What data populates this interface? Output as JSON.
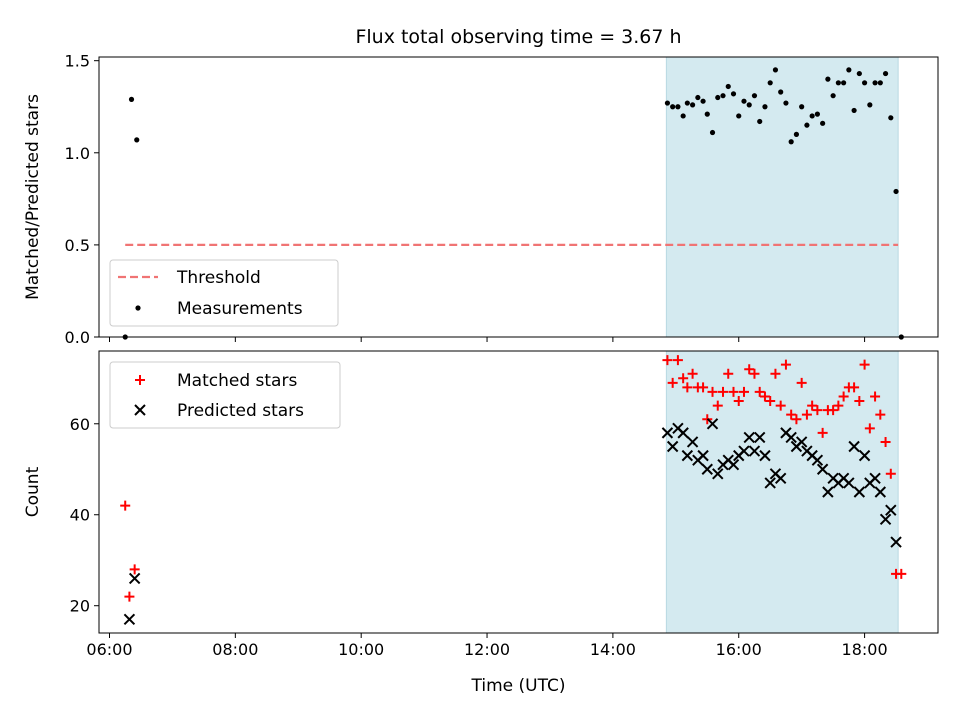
{
  "chart_data": [
    {
      "type": "scatter",
      "title": "Flux total observing time = 3.67 h",
      "xlabel": "",
      "ylabel": "Matched/Predicted stars",
      "xlim": [
        "05:50",
        "19:10"
      ],
      "ylim": [
        0,
        1.52
      ],
      "x_ticks": [
        "06:00",
        "08:00",
        "10:00",
        "12:00",
        "14:00",
        "16:00",
        "18:00"
      ],
      "y_ticks": [
        "0.0",
        "0.5",
        "1.0",
        "1.5"
      ],
      "grid": false,
      "legend_position": "lower-left",
      "shaded_interval": {
        "start": "14:51",
        "end": "18:32",
        "color": "#d4eaf0"
      },
      "threshold": {
        "name": "Threshold",
        "value": 0.5,
        "x_start": "06:15",
        "x_end": "18:32",
        "color": "#f07474",
        "style": "dashed"
      },
      "series": [
        {
          "name": "Measurements",
          "marker": "dot",
          "color": "#000000",
          "points": [
            [
              "06:15",
              0.0
            ],
            [
              "06:21",
              1.29
            ],
            [
              "06:26",
              1.07
            ],
            [
              "14:52",
              1.27
            ],
            [
              "14:57",
              1.25
            ],
            [
              "15:02",
              1.25
            ],
            [
              "15:07",
              1.2
            ],
            [
              "15:11",
              1.27
            ],
            [
              "15:16",
              1.26
            ],
            [
              "15:21",
              1.3
            ],
            [
              "15:26",
              1.28
            ],
            [
              "15:30",
              1.21
            ],
            [
              "15:35",
              1.11
            ],
            [
              "15:40",
              1.3
            ],
            [
              "15:45",
              1.31
            ],
            [
              "15:50",
              1.36
            ],
            [
              "15:55",
              1.32
            ],
            [
              "16:00",
              1.2
            ],
            [
              "16:05",
              1.28
            ],
            [
              "16:10",
              1.26
            ],
            [
              "16:15",
              1.31
            ],
            [
              "16:20",
              1.17
            ],
            [
              "16:25",
              1.25
            ],
            [
              "16:30",
              1.38
            ],
            [
              "16:35",
              1.45
            ],
            [
              "16:40",
              1.33
            ],
            [
              "16:45",
              1.27
            ],
            [
              "16:50",
              1.06
            ],
            [
              "16:55",
              1.1
            ],
            [
              "17:00",
              1.25
            ],
            [
              "17:05",
              1.15
            ],
            [
              "17:10",
              1.2
            ],
            [
              "17:15",
              1.21
            ],
            [
              "17:20",
              1.16
            ],
            [
              "17:25",
              1.4
            ],
            [
              "17:30",
              1.31
            ],
            [
              "17:35",
              1.38
            ],
            [
              "17:40",
              1.38
            ],
            [
              "17:45",
              1.45
            ],
            [
              "17:50",
              1.23
            ],
            [
              "17:55",
              1.43
            ],
            [
              "18:00",
              1.38
            ],
            [
              "18:05",
              1.26
            ],
            [
              "18:10",
              1.38
            ],
            [
              "18:15",
              1.38
            ],
            [
              "18:20",
              1.43
            ],
            [
              "18:25",
              1.19
            ],
            [
              "18:30",
              0.79
            ],
            [
              "18:35",
              0.0
            ]
          ]
        }
      ]
    },
    {
      "type": "scatter",
      "title": "",
      "xlabel": "Time (UTC)",
      "ylabel": "Count",
      "xlim": [
        "05:50",
        "19:10"
      ],
      "ylim": [
        14,
        76
      ],
      "x_ticks": [
        "06:00",
        "08:00",
        "10:00",
        "12:00",
        "14:00",
        "16:00",
        "18:00"
      ],
      "y_ticks": [
        "20",
        "40",
        "60"
      ],
      "grid": false,
      "legend_position": "upper-left",
      "shaded_interval": {
        "start": "14:51",
        "end": "18:32",
        "color": "#d4eaf0"
      },
      "series": [
        {
          "name": "Matched stars",
          "marker": "plus",
          "color": "#ff0000",
          "points": [
            [
              "06:15",
              42
            ],
            [
              "06:19",
              22
            ],
            [
              "06:24",
              28
            ],
            [
              "14:52",
              74
            ],
            [
              "14:57",
              69
            ],
            [
              "15:02",
              74
            ],
            [
              "15:07",
              70
            ],
            [
              "15:11",
              68
            ],
            [
              "15:16",
              71
            ],
            [
              "15:21",
              68
            ],
            [
              "15:26",
              68
            ],
            [
              "15:30",
              61
            ],
            [
              "15:35",
              67
            ],
            [
              "15:40",
              64
            ],
            [
              "15:45",
              67
            ],
            [
              "15:50",
              71
            ],
            [
              "15:55",
              67
            ],
            [
              "16:00",
              65
            ],
            [
              "16:05",
              67
            ],
            [
              "16:10",
              72
            ],
            [
              "16:15",
              71
            ],
            [
              "16:20",
              67
            ],
            [
              "16:25",
              66
            ],
            [
              "16:30",
              65
            ],
            [
              "16:35",
              71
            ],
            [
              "16:40",
              64
            ],
            [
              "16:45",
              73
            ],
            [
              "16:50",
              62
            ],
            [
              "16:55",
              61
            ],
            [
              "17:00",
              69
            ],
            [
              "17:05",
              62
            ],
            [
              "17:10",
              64
            ],
            [
              "17:15",
              63
            ],
            [
              "17:20",
              58
            ],
            [
              "17:25",
              63
            ],
            [
              "17:30",
              63
            ],
            [
              "17:35",
              64
            ],
            [
              "17:40",
              66
            ],
            [
              "17:45",
              68
            ],
            [
              "17:50",
              68
            ],
            [
              "17:55",
              65
            ],
            [
              "18:00",
              73
            ],
            [
              "18:05",
              59
            ],
            [
              "18:10",
              66
            ],
            [
              "18:15",
              62
            ],
            [
              "18:20",
              56
            ],
            [
              "18:25",
              49
            ],
            [
              "18:30",
              27
            ],
            [
              "18:35",
              27
            ]
          ]
        },
        {
          "name": "Predicted stars",
          "marker": "x",
          "color": "#000000",
          "points": [
            [
              "06:19",
              17
            ],
            [
              "06:24",
              26
            ],
            [
              "14:52",
              58
            ],
            [
              "14:57",
              55
            ],
            [
              "15:02",
              59
            ],
            [
              "15:07",
              58
            ],
            [
              "15:11",
              53
            ],
            [
              "15:16",
              56
            ],
            [
              "15:21",
              52
            ],
            [
              "15:26",
              53
            ],
            [
              "15:30",
              50
            ],
            [
              "15:35",
              60
            ],
            [
              "15:40",
              49
            ],
            [
              "15:45",
              51
            ],
            [
              "15:50",
              52
            ],
            [
              "15:55",
              51
            ],
            [
              "16:00",
              53
            ],
            [
              "16:05",
              54
            ],
            [
              "16:10",
              57
            ],
            [
              "16:15",
              54
            ],
            [
              "16:20",
              57
            ],
            [
              "16:25",
              53
            ],
            [
              "16:30",
              47
            ],
            [
              "16:35",
              49
            ],
            [
              "16:40",
              48
            ],
            [
              "16:45",
              58
            ],
            [
              "16:50",
              57
            ],
            [
              "16:55",
              55
            ],
            [
              "17:00",
              56
            ],
            [
              "17:05",
              54
            ],
            [
              "17:10",
              53
            ],
            [
              "17:15",
              52
            ],
            [
              "17:20",
              50
            ],
            [
              "17:25",
              45
            ],
            [
              "17:30",
              48
            ],
            [
              "17:35",
              47
            ],
            [
              "17:40",
              48
            ],
            [
              "17:45",
              47
            ],
            [
              "17:50",
              55
            ],
            [
              "17:55",
              45
            ],
            [
              "18:00",
              53
            ],
            [
              "18:05",
              47
            ],
            [
              "18:10",
              48
            ],
            [
              "18:15",
              45
            ],
            [
              "18:20",
              39
            ],
            [
              "18:25",
              41
            ],
            [
              "18:30",
              34
            ]
          ]
        }
      ]
    }
  ]
}
